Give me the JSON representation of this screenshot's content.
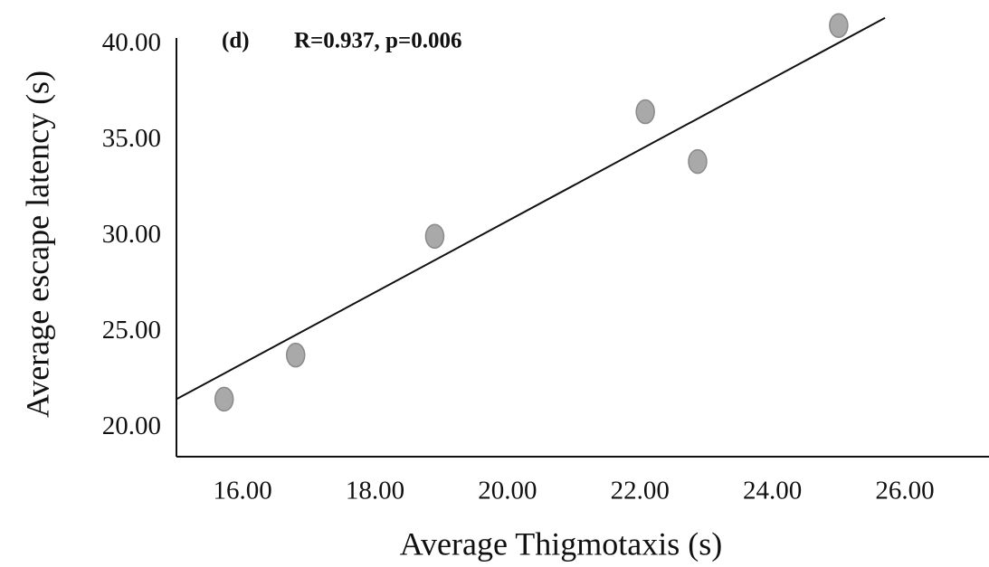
{
  "chart_data": {
    "type": "scatter",
    "annotation_label": "(d)",
    "annotation_stats": "R=0.937, p=0.006",
    "x_label": "Average Thigmotaxis (s)",
    "y_label": "Average escape latency (s)",
    "x": [
      15.72,
      16.8,
      18.9,
      22.08,
      22.87,
      25.0
    ],
    "y": [
      21.5,
      23.8,
      30.0,
      36.5,
      33.9,
      41.0
    ],
    "color": "#a9a9a9",
    "trendline": {
      "x": [
        15.0,
        25.7
      ],
      "y": [
        21.5,
        41.4
      ],
      "color": "#111111"
    },
    "xlim": [
      15,
      27.27
    ],
    "ylim": [
      18.5,
      42
    ],
    "xticks": [
      {
        "value": 16,
        "label": "16.00"
      },
      {
        "value": 18,
        "label": "18.00"
      },
      {
        "value": 20,
        "label": "20.00"
      },
      {
        "value": 22,
        "label": "22.00"
      },
      {
        "value": 24,
        "label": "24.00"
      },
      {
        "value": 26,
        "label": "26.00"
      }
    ],
    "yticks": [
      {
        "value": 20,
        "label": "20.00"
      },
      {
        "value": 25,
        "label": "25.00"
      },
      {
        "value": 30,
        "label": "30.00"
      },
      {
        "value": 35,
        "label": "35.00"
      },
      {
        "value": 40,
        "label": "40.00"
      }
    ],
    "grid": false
  }
}
